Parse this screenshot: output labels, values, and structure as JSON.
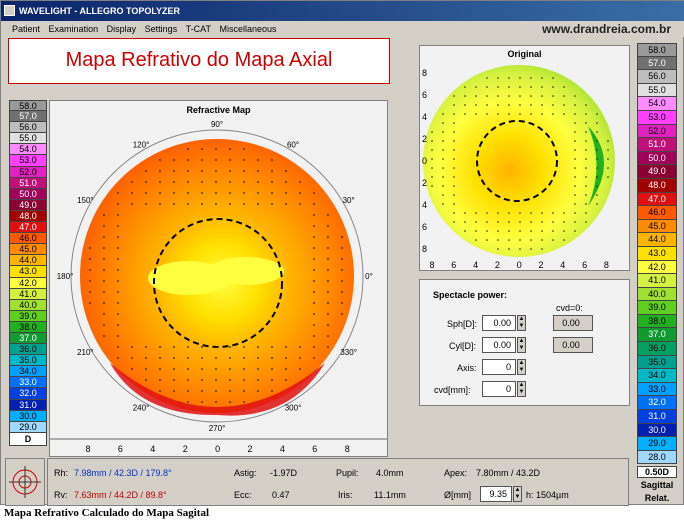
{
  "window": {
    "title": "WAVELIGHT  -  ALLEGRO TOPOLYZER",
    "site": "www.drandreia.com.br"
  },
  "menu": [
    "Patient",
    "Examination",
    "Display",
    "Settings",
    "T-CAT",
    "Miscellaneous"
  ],
  "banner": "Mapa Refrativo do Mapa Axial",
  "refractive_map": {
    "title": "Refractive Map",
    "angle_labels": [
      "90°",
      "60°",
      "30°",
      "0°",
      "330°",
      "300°",
      "270°",
      "240°",
      "210°",
      "180°",
      "150°",
      "120°"
    ],
    "axis_ticks": [
      "8",
      "6",
      "4",
      "2",
      "0",
      "2",
      "4",
      "6",
      "8"
    ]
  },
  "original_map": {
    "title": "Original",
    "axis_ticks": [
      "8",
      "6",
      "4",
      "2",
      "0",
      "2",
      "4",
      "6",
      "8"
    ]
  },
  "left_scale": {
    "values": [
      "58.0",
      "57.0",
      "56.0",
      "55.0",
      "54.0",
      "53.0",
      "52.0",
      "51.0",
      "50.0",
      "49.0",
      "48.0",
      "47.0",
      "46.0",
      "45.0",
      "44.0",
      "43.0",
      "42.0",
      "41.0",
      "40.0",
      "39.0",
      "38.0",
      "37.0",
      "36.0",
      "35.0",
      "34.0",
      "33.0",
      "32.0",
      "31.0",
      "30.0",
      "29.0"
    ],
    "colors": [
      "#9a9a9a",
      "#707070",
      "#bdbdbd",
      "#e0e0e0",
      "#ff8cff",
      "#ff40ff",
      "#e020c0",
      "#c0107a",
      "#a0005a",
      "#8a0030",
      "#a00000",
      "#e01010",
      "#ff5a00",
      "#ff8c00",
      "#ffb400",
      "#ffe000",
      "#ffff40",
      "#d4f040",
      "#a0e030",
      "#60d020",
      "#20b020",
      "#109a30",
      "#00a090",
      "#00b8c8",
      "#00a0ff",
      "#0070ff",
      "#0040e0",
      "#0020b0",
      "#00b0ff",
      "#a0d8ff"
    ],
    "footer": "D"
  },
  "right_scale": {
    "values": [
      "58.0",
      "57.0",
      "56.0",
      "55.0",
      "54.0",
      "53.0",
      "52.0",
      "51.0",
      "50.0",
      "49.0",
      "48.0",
      "47.0",
      "46.0",
      "45.0",
      "44.0",
      "43.0",
      "42.0",
      "41.0",
      "40.0",
      "39.0",
      "38.0",
      "37.0",
      "36.0",
      "35.0",
      "34.0",
      "33.0",
      "32.0",
      "31.0",
      "30.0",
      "29.0",
      "28.0"
    ],
    "colors": [
      "#9a9a9a",
      "#707070",
      "#bdbdbd",
      "#e0e0e0",
      "#ff8cff",
      "#ff40ff",
      "#e020c0",
      "#c0107a",
      "#a0005a",
      "#8a0030",
      "#a00000",
      "#e01010",
      "#ff5a00",
      "#ff8c00",
      "#ffb400",
      "#ffe000",
      "#ffff40",
      "#d4f040",
      "#a0e030",
      "#60d020",
      "#20b020",
      "#109a30",
      "#00a060",
      "#00a090",
      "#00b8c8",
      "#00a0ff",
      "#0070ff",
      "#0040e0",
      "#0020b0",
      "#00b0ff",
      "#a0d8ff"
    ],
    "footer": [
      "0.50D",
      "Sagittal",
      "Relat."
    ]
  },
  "spectacle": {
    "title": "Spectacle power:",
    "cvd_label": "cvd=0:",
    "sph_label": "Sph[D]:",
    "sph_value": "0.00",
    "sph_cvd0": "0.00",
    "cyl_label": "Cyl[D]:",
    "cyl_value": "0.00",
    "cyl_cvd0": "0.00",
    "axis_label": "Axis:",
    "axis_value": "0",
    "cvd_mm_label": "cvd[mm]:",
    "cvd_mm_value": "0"
  },
  "status": {
    "rh_label": "Rh:",
    "rh_value": "7.98mm / 42.3D / 179.8°",
    "rv_label": "Rv:",
    "rv_value": "7.63mm / 44.2D / 89.8°",
    "astig_label": "Astig:",
    "astig_value": "-1.97D",
    "ecc_label": "Ecc:",
    "ecc_value": "0.47",
    "pupil_label": "Pupil:",
    "pupil_value": "4.0mm",
    "iris_label": "Iris:",
    "iris_value": "11.1mm",
    "apex_label": "Apex:",
    "apex_value": "7.80mm / 43.2D",
    "diam_label": "Ø[mm]",
    "diam_value": "9.35",
    "h_value": "h: 1504µm"
  },
  "caption": "Mapa Refrativo Calculado do Mapa Sagital"
}
